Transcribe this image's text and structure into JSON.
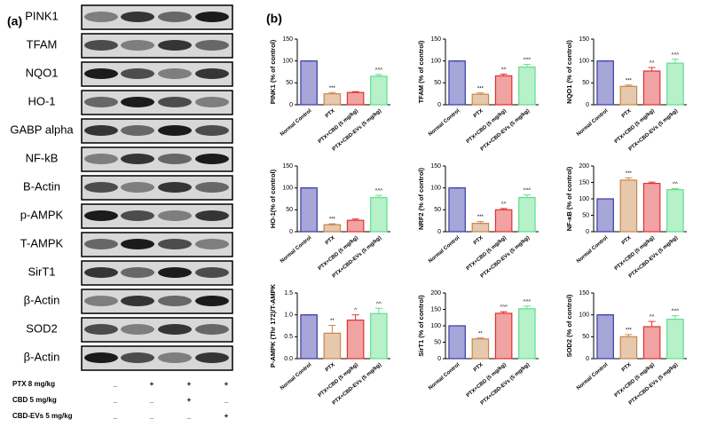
{
  "panel_a": {
    "label": "(a)",
    "blots": [
      "PINK1",
      "TFAM",
      "NQO1",
      "HO-1",
      "GABP alpha",
      "NF-kB",
      "B-Actin",
      "p-AMPK",
      "T-AMPK",
      "SirT1",
      "β-Actin",
      "SOD2",
      "β-Actin"
    ],
    "treatments": [
      {
        "name": "PTX  8 mg/kg",
        "signs": [
          "_",
          "+",
          "+",
          "+"
        ]
      },
      {
        "name": "CBD  5 mg/kg",
        "signs": [
          "_",
          "_",
          "+",
          "_"
        ]
      },
      {
        "name": "CBD-EVs  5 mg/kg",
        "signs": [
          "_",
          "_",
          "_",
          "+"
        ]
      }
    ]
  },
  "panel_b_label": "(b)",
  "chart_data": [
    {
      "type": "bar",
      "y_label": "PINK1 (% of control)",
      "categories": [
        "Normal Control",
        "PTX",
        "PTX+CBD (5 mg/kg)",
        "PTX+CBD-EVs (5 mg/kg)"
      ],
      "values": [
        100,
        25,
        28,
        65
      ],
      "errors": [
        0,
        3,
        2,
        4
      ],
      "annotations": [
        null,
        "***",
        null,
        "^^^"
      ],
      "colors": [
        "#3a3aa8",
        "#c8864a",
        "#e03030",
        "#5ee08a"
      ],
      "ylim": [
        0,
        150
      ],
      "yticks": [
        0,
        50,
        100,
        150
      ]
    },
    {
      "type": "bar",
      "y_label": "TFAM (% of control)",
      "categories": [
        "Normal Control",
        "PTX",
        "PTX+CBD (5 mg/kg)",
        "PTX+CBD-EVs (5 mg/kg)"
      ],
      "values": [
        100,
        24,
        66,
        86
      ],
      "errors": [
        0,
        3,
        4,
        6
      ],
      "annotations": [
        null,
        "***",
        "^^",
        "^^^"
      ],
      "colors": [
        "#3a3aa8",
        "#c8864a",
        "#e03030",
        "#5ee08a"
      ],
      "ylim": [
        0,
        150
      ],
      "yticks": [
        0,
        50,
        100,
        150
      ]
    },
    {
      "type": "bar",
      "y_label": "NQO1 (% of control)",
      "categories": [
        "Normal Control",
        "PTX",
        "PTX+CBD (5 mg/kg)",
        "PTX+CBD-EVs (5 mg/kg)"
      ],
      "values": [
        100,
        42,
        77,
        95
      ],
      "errors": [
        0,
        3,
        8,
        9
      ],
      "annotations": [
        null,
        "***",
        "^^",
        "^^^"
      ],
      "colors": [
        "#3a3aa8",
        "#c8864a",
        "#e03030",
        "#5ee08a"
      ],
      "ylim": [
        0,
        150
      ],
      "yticks": [
        0,
        50,
        100,
        150
      ]
    },
    {
      "type": "bar",
      "y_label": "HO-1(% of control)",
      "categories": [
        "Normal Control",
        "PTX",
        "PTX+CBD (5 mg/kg)",
        "PTX+CBD-EVs (5 mg/kg)"
      ],
      "values": [
        100,
        16,
        26,
        78
      ],
      "errors": [
        0,
        2,
        3,
        5
      ],
      "annotations": [
        null,
        "***",
        null,
        "^^^"
      ],
      "colors": [
        "#3a3aa8",
        "#c8864a",
        "#e03030",
        "#5ee08a"
      ],
      "ylim": [
        0,
        150
      ],
      "yticks": [
        0,
        50,
        100,
        150
      ]
    },
    {
      "type": "bar",
      "y_label": "NRF2 (% of control)",
      "categories": [
        "Normal Control",
        "PTX",
        "PTX+CBD (5 mg/kg)",
        "PTX+CBD-EVs (5 mg/kg)"
      ],
      "values": [
        100,
        19,
        50,
        78
      ],
      "errors": [
        0,
        4,
        3,
        6
      ],
      "annotations": [
        null,
        "***",
        "^^",
        "^^^"
      ],
      "colors": [
        "#3a3aa8",
        "#c8864a",
        "#e03030",
        "#5ee08a"
      ],
      "ylim": [
        0,
        150
      ],
      "yticks": [
        0,
        50,
        100,
        150
      ]
    },
    {
      "type": "bar",
      "y_label": "NF-κB (% of control)",
      "categories": [
        "Normal Control",
        "PTX",
        "PTX+CBD (5 mg/kg)",
        "PTX+CBD-EVs (5 mg/kg)"
      ],
      "values": [
        100,
        157,
        147,
        128
      ],
      "errors": [
        0,
        7,
        4,
        3
      ],
      "annotations": [
        null,
        "***",
        null,
        "^^"
      ],
      "colors": [
        "#3a3aa8",
        "#c8864a",
        "#e03030",
        "#5ee08a"
      ],
      "ylim": [
        0,
        200
      ],
      "yticks": [
        0,
        50,
        100,
        150,
        200
      ]
    },
    {
      "type": "bar",
      "y_label": "P-AMPK (Thr 172)/T-AMPK",
      "categories": [
        "Normal Control",
        "PTX",
        "PTX+CBD (5 mg/kg)",
        "PTX+CBD-EVs (5 mg/kg)"
      ],
      "values": [
        1.0,
        0.58,
        0.88,
        1.03
      ],
      "errors": [
        0,
        0.18,
        0.12,
        0.12
      ],
      "annotations": [
        null,
        "**",
        "^",
        "^^"
      ],
      "colors": [
        "#3a3aa8",
        "#c8864a",
        "#e03030",
        "#5ee08a"
      ],
      "ylim": [
        0,
        1.5
      ],
      "yticks": [
        {
          "value": 0,
          "label": "0.0"
        },
        0.5,
        {
          "value": 1,
          "label": "1.0"
        },
        1.5
      ]
    },
    {
      "type": "bar",
      "y_label": "SirT1 (% of control)",
      "categories": [
        "Normal Control",
        "PTX",
        "PTX+CBD (5 mg/kg)",
        "PTX+CBD-EVs (5 mg/kg)"
      ],
      "values": [
        100,
        60,
        138,
        152
      ],
      "errors": [
        0,
        3,
        5,
        8
      ],
      "annotations": [
        null,
        "**",
        "^^^",
        "^^^"
      ],
      "colors": [
        "#3a3aa8",
        "#c8864a",
        "#e03030",
        "#5ee08a"
      ],
      "ylim": [
        0,
        200
      ],
      "yticks": [
        0,
        50,
        100,
        150,
        200
      ]
    },
    {
      "type": "bar",
      "y_label": "SOD2 (% of control)",
      "categories": [
        "Normal Control",
        "PTX",
        "PTX+CBD (5 mg/kg)",
        "PTX+CBD-EVs (5 mg/kg)"
      ],
      "values": [
        100,
        50,
        73,
        90
      ],
      "errors": [
        0,
        5,
        12,
        8
      ],
      "annotations": [
        null,
        "***",
        "^^",
        "^^^"
      ],
      "colors": [
        "#3a3aa8",
        "#c8864a",
        "#e03030",
        "#5ee08a"
      ],
      "ylim": [
        0,
        150
      ],
      "yticks": [
        0,
        50,
        100,
        150
      ]
    }
  ]
}
